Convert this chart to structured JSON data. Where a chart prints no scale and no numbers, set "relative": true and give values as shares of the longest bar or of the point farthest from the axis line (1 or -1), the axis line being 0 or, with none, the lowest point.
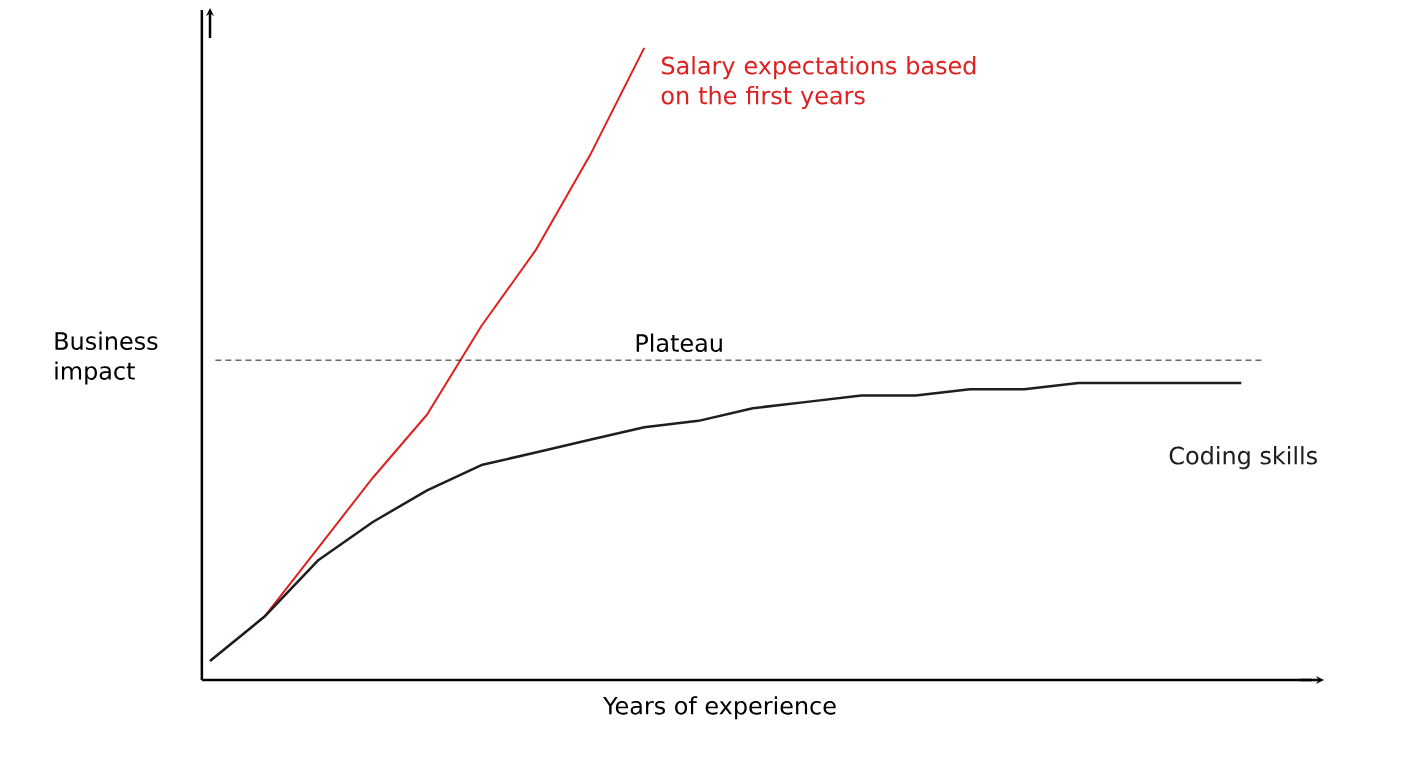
{
  "chart_data": {
    "type": "line",
    "relative": true,
    "xlabel": "Years of experience",
    "ylabel": "Business impact",
    "categories": [
      null,
      null,
      null,
      null,
      null,
      null,
      null,
      null,
      null,
      null,
      null,
      null,
      null,
      null,
      null,
      null,
      null,
      null,
      null,
      null,
      null
    ],
    "series": [
      {
        "name": "Salary expectations based on the first years",
        "color": "#e02020",
        "values": [
          0.03,
          0.1,
          0.21,
          0.32,
          0.42,
          0.56,
          0.68,
          0.83,
          1.0,
          null,
          null,
          null,
          null,
          null,
          null,
          null,
          null,
          null,
          null,
          null,
          null
        ]
      },
      {
        "name": "Coding skills",
        "color": "#1e1e1e",
        "values": [
          0.03,
          0.1,
          0.19,
          0.25,
          0.3,
          0.34,
          0.36,
          0.38,
          0.4,
          0.41,
          0.43,
          0.44,
          0.45,
          0.45,
          0.46,
          0.46,
          0.47,
          0.47,
          0.47,
          0.47,
          null
        ]
      }
    ],
    "ref_lines": [
      {
        "axis": "y",
        "value": 0.506,
        "label": "Plateau",
        "line_style": "dashed",
        "color": "#1e1e1e"
      }
    ]
  }
}
